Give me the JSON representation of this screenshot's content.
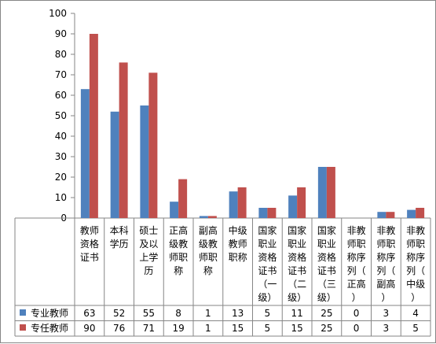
{
  "chart_data": {
    "type": "bar",
    "title": "",
    "xlabel": "",
    "ylabel": "",
    "ylim": [
      0,
      100
    ],
    "yticks": [
      0,
      10,
      20,
      30,
      40,
      50,
      60,
      70,
      80,
      90,
      100
    ],
    "grid": false,
    "legend_placement": "data-table-left",
    "categories": [
      "教师资格证书",
      "本科学历",
      "硕士及以上学历",
      "正高级教师职称",
      "副高级教师职称",
      "中级教师职称",
      "国家职业资格证书（一级）",
      "国家职业资格证书（二级）",
      "国家职业资格证书（三级）",
      "非教师职称序列（正高）",
      "非教师职称序列（副高）",
      "非教师职称序列（中级）"
    ],
    "series": [
      {
        "name": "专业教师",
        "color": "#4F81BD",
        "values": [
          63,
          52,
          55,
          8,
          1,
          13,
          5,
          11,
          25,
          0,
          3,
          4
        ]
      },
      {
        "name": "专任教师",
        "color": "#C0504D",
        "values": [
          90,
          76,
          71,
          19,
          1,
          15,
          5,
          15,
          25,
          0,
          3,
          5
        ]
      }
    ]
  }
}
